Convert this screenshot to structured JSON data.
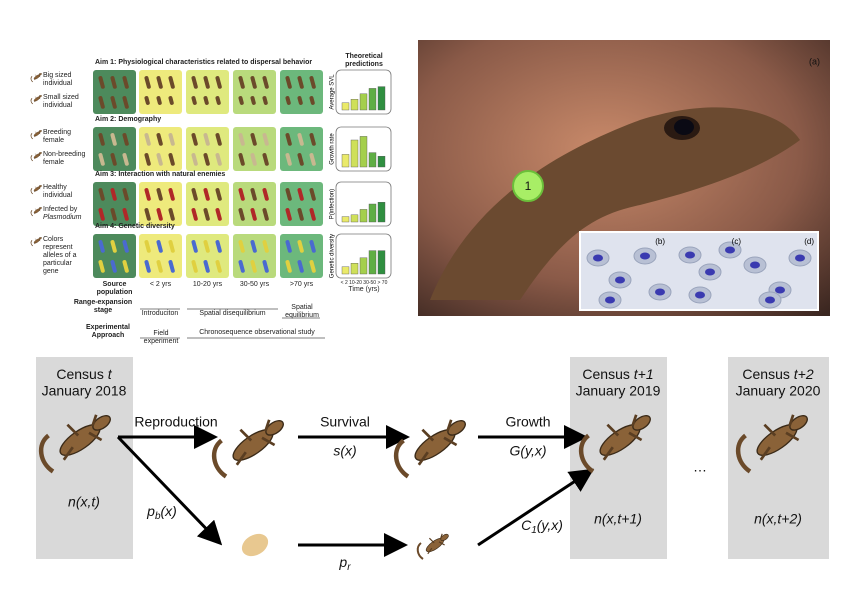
{
  "aims_panel": {
    "aims": [
      {
        "title": "Aim 1: Physiological characteristics related to dispersal behavior",
        "legend": [
          "Big sized individual",
          "Small sized individual"
        ],
        "y_label": "Average SVL",
        "bars": [
          0.2,
          0.3,
          0.45,
          0.6,
          0.65
        ]
      },
      {
        "title": "Aim 2: Demography",
        "legend": [
          "Breeding female",
          "Non-breeding female"
        ],
        "y_label": "Growth rate",
        "bars": [
          0.35,
          0.75,
          0.85,
          0.4,
          0.3
        ]
      },
      {
        "title": "Aim 3: Interaction with natural enemies",
        "legend": [
          "Healthy individual",
          "Infected by"
        ],
        "legend_italic": "Plasmodium",
        "y_label": "P(infection)",
        "bars": [
          0.15,
          0.2,
          0.35,
          0.5,
          0.55
        ]
      },
      {
        "title": "Aim 4: Genetic diversity",
        "legend": [
          "Colors represent alleles of a particular gene"
        ],
        "y_label": "Genetic diversity",
        "bars": [
          0.2,
          0.3,
          0.45,
          0.65,
          0.65
        ]
      }
    ],
    "bar_colors": [
      "#eaea6a",
      "#cfe05a",
      "#a4cf4c",
      "#5fae44",
      "#2f8f40"
    ],
    "predictions_title": "Theoretical predictions",
    "columns": [
      "Source population",
      "< 2 yrs",
      "10-20 yrs",
      "30-50 yrs",
      ">70 yrs"
    ],
    "time_ticks": "< 2 10-20 30-50 > 70",
    "time_label": "Time (yrs)",
    "stage_label": "Range-expansion stage",
    "stages": [
      "Introduciton",
      "Spatial disequilibrium",
      "Spatial equilibrium"
    ],
    "approach_label": "Experimental Approach",
    "approaches": [
      "Field experiment",
      "Chronosequence observational study"
    ]
  },
  "photo": {
    "panel": "(a)",
    "tag": "1",
    "insets": [
      "(b)",
      "(c)",
      "(d)"
    ]
  },
  "model": {
    "censuses": [
      {
        "label": "Census",
        "var": "t",
        "date": "January 2018",
        "state": "n(x,t)"
      },
      {
        "label": "Census",
        "var": "t+1",
        "date": "January 2019",
        "state": "n(x,t+1)"
      },
      {
        "label": "Census",
        "var": "t+2",
        "date": "January 2020",
        "state": "n(x,t+2)"
      }
    ],
    "reproduction": "Reproduction",
    "survival": "Survival",
    "survival_fn": "s(x)",
    "growth": "Growth",
    "growth_fn": "G(y,x)",
    "breeding": {
      "base": "p",
      "sub": "b",
      "rest": "(x)"
    },
    "recruit": {
      "base": "p",
      "sub": "r"
    },
    "recruit_growth": {
      "base": "C",
      "sub": "1",
      "rest": "(y,x)"
    },
    "ellipsis": "…"
  }
}
